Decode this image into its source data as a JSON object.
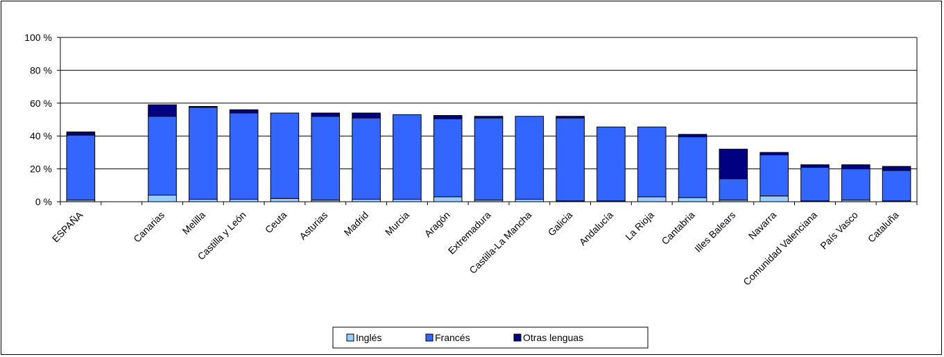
{
  "chart_data": {
    "type": "bar",
    "stacked": true,
    "categories": [
      "ESPAÑA",
      "",
      "Canarias",
      "Melilla",
      "Castilla y León",
      "Ceuta",
      "Asturias",
      "Madrid",
      "Murcia",
      "Aragón",
      "Extremadura",
      "Castilla-La Mancha",
      "Galicia",
      "Andalucía",
      "La Rioja",
      "Cantabria",
      "Illes Balears",
      "Navarra",
      "Comunidad Valenciana",
      "País Vasco",
      "Cataluña"
    ],
    "series": [
      {
        "name": "Inglés",
        "color": "#99ccff",
        "values": [
          1,
          null,
          4,
          1.5,
          1.5,
          2,
          1,
          1.5,
          1.5,
          3,
          1,
          1.5,
          0.5,
          0.5,
          3,
          2.5,
          1,
          3.5,
          0.5,
          1,
          0.5
        ]
      },
      {
        "name": "Francés",
        "color": "#3366ff",
        "values": [
          39.5,
          null,
          48,
          56,
          52.5,
          52,
          51,
          49.5,
          51.5,
          47.5,
          50,
          50.5,
          50.5,
          45,
          42.5,
          37,
          13,
          25,
          20.5,
          19,
          18.5
        ]
      },
      {
        "name": "Otras lenguas",
        "color": "#000080",
        "values": [
          2,
          null,
          7,
          0.5,
          2,
          0,
          2,
          3,
          0,
          2,
          1,
          0,
          1,
          0,
          0,
          1.5,
          18,
          1.5,
          1.5,
          2.5,
          2.5
        ]
      }
    ],
    "y_ticks": [
      "0 %",
      "20 %",
      "40 %",
      "60 %",
      "80 %",
      "100 %"
    ],
    "ylim": [
      0,
      100
    ],
    "grid": true,
    "legend_position": "bottom",
    "title": "",
    "xlabel": "",
    "ylabel": ""
  }
}
